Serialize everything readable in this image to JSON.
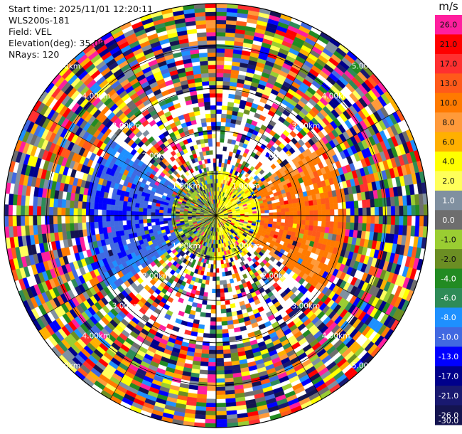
{
  "info": {
    "start_time": "Start time: 2025/11/01 12:20:11",
    "station": "WLS200s-181",
    "field": "Field: VEL",
    "elevation": "Elevation(deg): 35.00",
    "nrays": "NRays: 120"
  },
  "chart_data": {
    "type": "heatmap",
    "subtype": "polar-ppi",
    "field": "VEL",
    "units": "m/s",
    "n_rays": 120,
    "elevation_deg": 35.0,
    "range_rings_km": [
      1.0,
      2.0,
      3.0,
      4.0,
      5.0
    ],
    "range_ring_labels": [
      "1.00km",
      "2.00km",
      "3.00km",
      "4.00km",
      "5.00km"
    ],
    "max_range_km": 5.0,
    "colorbar": {
      "label": "m/s",
      "ticks": [
        "26.0",
        "21.0",
        "17.0",
        "13.0",
        "10.0",
        "8.0",
        "6.0",
        "4.0",
        "2.0",
        "1.0",
        "0.0",
        "-1.0",
        "-2.0",
        "-4.0",
        "-6.0",
        "-8.0",
        "-10.0",
        "-13.0",
        "-17.0",
        "-21.0",
        "-26.0",
        "-30.0"
      ],
      "colors": [
        "#ff1f9e",
        "#ff0000",
        "#ff3030",
        "#ff5a1a",
        "#ff7a00",
        "#ff9a3a",
        "#ffb000",
        "#ffff00",
        "#ffff5a",
        "#8090a0",
        "#6e6e6e",
        "#9acd32",
        "#6b8e23",
        "#228b22",
        "#2e8b57",
        "#1e90ff",
        "#4169e1",
        "#0000ff",
        "#00008b",
        "#191970",
        "#141450"
      ]
    },
    "grid": true
  }
}
